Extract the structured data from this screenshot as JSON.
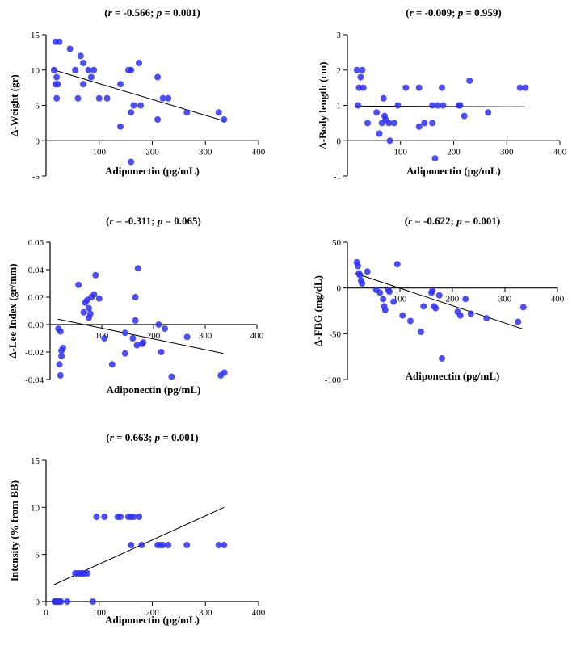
{
  "chart_data": [
    {
      "type": "scatter",
      "title": "(r = -0.566; p = 0.001)",
      "title_parts": {
        "r_var": "r",
        "r_text": " = -0.566; ",
        "p_var": "p",
        "p_text": " = 0.001)",
        "open": "("
      },
      "xlabel": "Adiponectin (pg/mL)",
      "ylabel": "Δ-Weight (gr)",
      "xlim": [
        0,
        400
      ],
      "ylim": [
        -5,
        15
      ],
      "xticks": [
        0,
        100,
        200,
        300,
        400
      ],
      "yticks": [
        -5,
        0,
        5,
        10,
        15
      ],
      "ytick_labels": [
        "-5",
        "0",
        "5",
        "10",
        "15"
      ],
      "x_axis_at": 0,
      "show_x0_tick_label": false,
      "fit_line": {
        "x": [
          15,
          335
        ],
        "y": [
          10,
          2.8
        ]
      },
      "points": [
        [
          18,
          14
        ],
        [
          25,
          14
        ],
        [
          45,
          13
        ],
        [
          15,
          10
        ],
        [
          20,
          9
        ],
        [
          18,
          8
        ],
        [
          22,
          8
        ],
        [
          20,
          6
        ],
        [
          55,
          10
        ],
        [
          65,
          12
        ],
        [
          70,
          11
        ],
        [
          70,
          8
        ],
        [
          80,
          10
        ],
        [
          85,
          9
        ],
        [
          90,
          10
        ],
        [
          100,
          6
        ],
        [
          115,
          6
        ],
        [
          60,
          6
        ],
        [
          140,
          8
        ],
        [
          140,
          2
        ],
        [
          155,
          10
        ],
        [
          160,
          10
        ],
        [
          165,
          5
        ],
        [
          175,
          11
        ],
        [
          178,
          5
        ],
        [
          160,
          -3
        ],
        [
          160,
          4
        ],
        [
          210,
          9
        ],
        [
          210,
          3
        ],
        [
          220,
          6
        ],
        [
          230,
          6
        ],
        [
          265,
          4
        ],
        [
          325,
          4
        ],
        [
          335,
          3
        ]
      ]
    },
    {
      "type": "scatter",
      "title": "(r = -0.009; p = 0.959)",
      "title_parts": {
        "r_var": "r",
        "r_text": " = -0.009; ",
        "p_var": "p",
        "p_text": " = 0.959)",
        "open": "("
      },
      "xlabel": "Adiponectin (pg/mL)",
      "ylabel": "Δ-Body length (cm)",
      "xlim": [
        0,
        400
      ],
      "ylim": [
        -1,
        3
      ],
      "xticks": [
        0,
        100,
        200,
        300,
        400
      ],
      "yticks": [
        -1,
        0,
        1,
        2,
        3
      ],
      "ytick_labels": [
        "-1",
        "0",
        "1",
        "2",
        "3"
      ],
      "x_axis_at": 0,
      "show_x0_tick_label": false,
      "fit_line": {
        "x": [
          15,
          335
        ],
        "y": [
          0.98,
          0.96
        ]
      },
      "points": [
        [
          18,
          2
        ],
        [
          22,
          1.5
        ],
        [
          25,
          1.8
        ],
        [
          28,
          2
        ],
        [
          30,
          1.5
        ],
        [
          20,
          1
        ],
        [
          38,
          0.5
        ],
        [
          55,
          0.8
        ],
        [
          60,
          0.2
        ],
        [
          65,
          0.5
        ],
        [
          68,
          1.2
        ],
        [
          70,
          0.7
        ],
        [
          72,
          0.6
        ],
        [
          78,
          0.5
        ],
        [
          80,
          0
        ],
        [
          88,
          0.5
        ],
        [
          95,
          1
        ],
        [
          110,
          1.5
        ],
        [
          135,
          1.5
        ],
        [
          135,
          0.4
        ],
        [
          145,
          0.5
        ],
        [
          160,
          1
        ],
        [
          160,
          0.5
        ],
        [
          165,
          -0.5
        ],
        [
          170,
          1
        ],
        [
          178,
          1.5
        ],
        [
          180,
          1
        ],
        [
          210,
          1
        ],
        [
          212,
          1
        ],
        [
          220,
          0.7
        ],
        [
          230,
          1.7
        ],
        [
          265,
          0.8
        ],
        [
          325,
          1.5
        ],
        [
          335,
          1.5
        ]
      ]
    },
    {
      "type": "scatter",
      "title": "(r = -0.311; p = 0.065)",
      "title_parts": {
        "r_var": "r",
        "r_text": " = -0.311; ",
        "p_var": "p",
        "p_text": " = 0.065)",
        "open": "("
      },
      "xlabel": "Adiponectin (pg/mL)",
      "ylabel": "Δ-Lee Index (gr/mm)",
      "xlim": [
        0,
        400
      ],
      "ylim": [
        -0.04,
        0.06
      ],
      "xticks": [
        0,
        100,
        200,
        300,
        400
      ],
      "yticks": [
        -0.04,
        -0.02,
        0.0,
        0.02,
        0.04,
        0.06
      ],
      "ytick_labels": [
        "-0.04",
        "-0.02",
        "0.00",
        "0.02",
        "0.04",
        "0.06"
      ],
      "x_axis_at": 0,
      "show_x0_tick_label": false,
      "fit_line": {
        "x": [
          15,
          335
        ],
        "y": [
          0.004,
          -0.021
        ]
      },
      "points": [
        [
          16,
          -0.003
        ],
        [
          18,
          -0.029
        ],
        [
          20,
          -0.037
        ],
        [
          22,
          -0.023
        ],
        [
          22,
          -0.019
        ],
        [
          25,
          -0.017
        ],
        [
          20,
          -0.005
        ],
        [
          55,
          0.029
        ],
        [
          65,
          0.009
        ],
        [
          68,
          0.016
        ],
        [
          72,
          0.018
        ],
        [
          75,
          0.012
        ],
        [
          75,
          0.005
        ],
        [
          78,
          0.008
        ],
        [
          80,
          0.02
        ],
        [
          85,
          0.022
        ],
        [
          88,
          0.036
        ],
        [
          95,
          0.019
        ],
        [
          105,
          -0.01
        ],
        [
          120,
          -0.029
        ],
        [
          145,
          -0.021
        ],
        [
          145,
          -0.006
        ],
        [
          160,
          -0.01
        ],
        [
          165,
          0.02
        ],
        [
          168,
          -0.015
        ],
        [
          165,
          0.003
        ],
        [
          170,
          0.041
        ],
        [
          178,
          -0.014
        ],
        [
          180,
          -0.013
        ],
        [
          210,
          0.0
        ],
        [
          215,
          -0.02
        ],
        [
          222,
          -0.003
        ],
        [
          235,
          -0.038
        ],
        [
          265,
          -0.009
        ],
        [
          330,
          -0.037
        ],
        [
          337,
          -0.035
        ]
      ]
    },
    {
      "type": "scatter",
      "title": "(r = -0.622; p = 0.001)",
      "title_parts": {
        "r_var": "r",
        "r_text": " = -0.622; ",
        "p_var": "p",
        "p_text": " = 0.001)",
        "open": "("
      },
      "xlabel": "Adiponectin (pg/mL)",
      "ylabel": "Δ-FBG (mg/dL)",
      "xlim": [
        0,
        400
      ],
      "ylim": [
        -100,
        50
      ],
      "xticks": [
        0,
        100,
        200,
        300,
        400
      ],
      "yticks": [
        -100,
        -50,
        0,
        50
      ],
      "ytick_labels": [
        "-100",
        "-50",
        "0",
        "50"
      ],
      "x_axis_at": 0,
      "show_x0_tick_label": false,
      "fit_line": {
        "x": [
          15,
          335
        ],
        "y": [
          16,
          -45
        ]
      },
      "points": [
        [
          18,
          28
        ],
        [
          20,
          24
        ],
        [
          22,
          16
        ],
        [
          24,
          14
        ],
        [
          26,
          8
        ],
        [
          28,
          5
        ],
        [
          38,
          18
        ],
        [
          55,
          -2
        ],
        [
          62,
          -5
        ],
        [
          68,
          -12
        ],
        [
          70,
          -20
        ],
        [
          72,
          -24
        ],
        [
          78,
          -2
        ],
        [
          80,
          -4
        ],
        [
          88,
          -15
        ],
        [
          95,
          26
        ],
        [
          105,
          -30
        ],
        [
          120,
          -36
        ],
        [
          140,
          -48
        ],
        [
          145,
          -20
        ],
        [
          160,
          -5
        ],
        [
          162,
          -3
        ],
        [
          165,
          -20
        ],
        [
          168,
          -22
        ],
        [
          175,
          -8
        ],
        [
          180,
          -77
        ],
        [
          210,
          -26
        ],
        [
          215,
          -30
        ],
        [
          225,
          -12
        ],
        [
          235,
          -28
        ],
        [
          265,
          -33
        ],
        [
          325,
          -37
        ],
        [
          335,
          -21
        ]
      ]
    },
    {
      "type": "scatter",
      "title": "(r = 0.663; p = 0.001)",
      "title_parts": {
        "r_var": "r",
        "r_text": " = 0.663; ",
        "p_var": "p",
        "p_text": " = 0.001)",
        "open": "("
      },
      "xlabel": "Adiponectin (pg/mL)",
      "ylabel": "Intensity (% from BB)",
      "xlim": [
        0,
        400
      ],
      "ylim": [
        0,
        15
      ],
      "xticks": [
        0,
        100,
        200,
        300,
        400
      ],
      "yticks": [
        0,
        5,
        10,
        15
      ],
      "ytick_labels": [
        "0",
        "5",
        "10",
        "15"
      ],
      "x_axis_at": 0,
      "show_x0_tick_label": true,
      "fit_line": {
        "x": [
          15,
          335
        ],
        "y": [
          1.8,
          10
        ]
      },
      "points": [
        [
          16,
          0
        ],
        [
          18,
          0
        ],
        [
          20,
          0
        ],
        [
          22,
          0
        ],
        [
          25,
          0
        ],
        [
          28,
          0
        ],
        [
          40,
          0
        ],
        [
          88,
          0
        ],
        [
          55,
          3
        ],
        [
          60,
          3
        ],
        [
          65,
          3
        ],
        [
          68,
          3
        ],
        [
          72,
          3
        ],
        [
          78,
          3
        ],
        [
          95,
          9
        ],
        [
          110,
          9
        ],
        [
          135,
          9
        ],
        [
          140,
          9
        ],
        [
          155,
          9
        ],
        [
          160,
          9
        ],
        [
          165,
          9
        ],
        [
          175,
          9
        ],
        [
          160,
          6
        ],
        [
          180,
          6
        ],
        [
          210,
          6
        ],
        [
          215,
          6
        ],
        [
          220,
          6
        ],
        [
          230,
          6
        ],
        [
          265,
          6
        ],
        [
          325,
          6
        ],
        [
          335,
          6
        ]
      ]
    }
  ]
}
